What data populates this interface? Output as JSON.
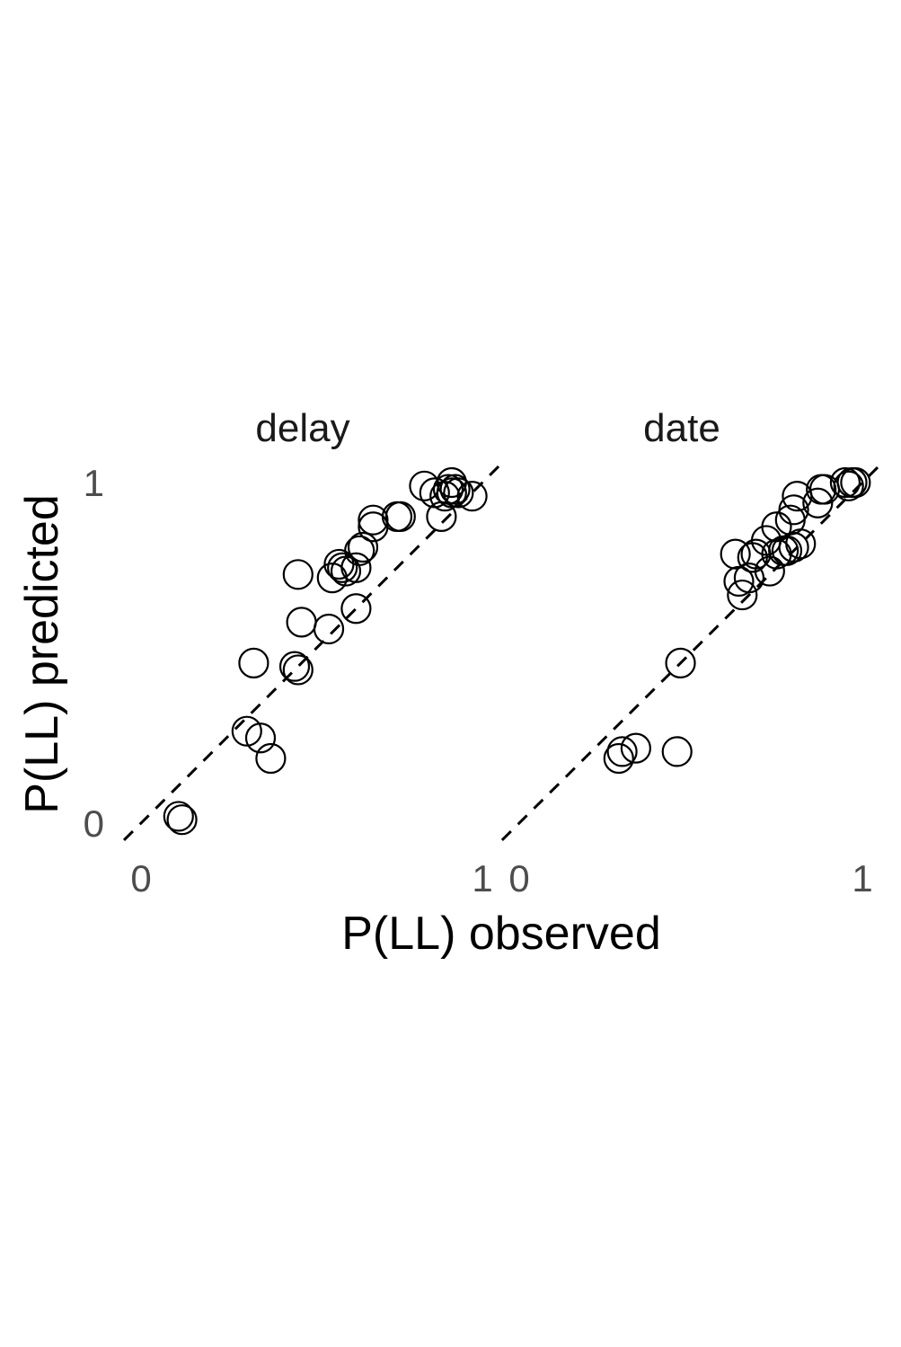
{
  "chart_data": {
    "type": "scatter",
    "xlabel": "P(LL) observed",
    "ylabel": "P(LL) predicted",
    "xlim": [
      0,
      1
    ],
    "ylim": [
      0,
      1
    ],
    "grid": false,
    "legend": "none",
    "reference_line": "y = x (dashed)",
    "marker": "open-circle",
    "facets": [
      {
        "title": "delay",
        "x_ticks": [
          "0",
          "1"
        ],
        "y_ticks": [
          "0",
          "1"
        ],
        "points": [
          {
            "x": 0.11,
            "y": 0.02
          },
          {
            "x": 0.12,
            "y": 0.01
          },
          {
            "x": 0.31,
            "y": 0.27
          },
          {
            "x": 0.35,
            "y": 0.25
          },
          {
            "x": 0.38,
            "y": 0.19
          },
          {
            "x": 0.33,
            "y": 0.47
          },
          {
            "x": 0.45,
            "y": 0.46
          },
          {
            "x": 0.46,
            "y": 0.45
          },
          {
            "x": 0.47,
            "y": 0.59
          },
          {
            "x": 0.55,
            "y": 0.57
          },
          {
            "x": 0.46,
            "y": 0.73
          },
          {
            "x": 0.56,
            "y": 0.72
          },
          {
            "x": 0.58,
            "y": 0.76
          },
          {
            "x": 0.59,
            "y": 0.75
          },
          {
            "x": 0.6,
            "y": 0.74
          },
          {
            "x": 0.63,
            "y": 0.63
          },
          {
            "x": 0.63,
            "y": 0.75
          },
          {
            "x": 0.64,
            "y": 0.8
          },
          {
            "x": 0.65,
            "y": 0.81
          },
          {
            "x": 0.68,
            "y": 0.87
          },
          {
            "x": 0.68,
            "y": 0.89
          },
          {
            "x": 0.75,
            "y": 0.9
          },
          {
            "x": 0.76,
            "y": 0.9
          },
          {
            "x": 0.83,
            "y": 0.99
          },
          {
            "x": 0.86,
            "y": 0.97
          },
          {
            "x": 0.88,
            "y": 0.9
          },
          {
            "x": 0.89,
            "y": 0.96
          },
          {
            "x": 0.9,
            "y": 0.98
          },
          {
            "x": 0.91,
            "y": 1.0
          },
          {
            "x": 0.91,
            "y": 0.97
          },
          {
            "x": 0.92,
            "y": 0.98
          },
          {
            "x": 0.93,
            "y": 0.97
          },
          {
            "x": 0.97,
            "y": 0.96
          }
        ]
      },
      {
        "title": "date",
        "x_ticks": [
          "0",
          "1"
        ],
        "y_ticks": [],
        "points": [
          {
            "x": 0.29,
            "y": 0.19
          },
          {
            "x": 0.3,
            "y": 0.21
          },
          {
            "x": 0.34,
            "y": 0.22
          },
          {
            "x": 0.46,
            "y": 0.21
          },
          {
            "x": 0.47,
            "y": 0.47
          },
          {
            "x": 0.63,
            "y": 0.79
          },
          {
            "x": 0.64,
            "y": 0.71
          },
          {
            "x": 0.65,
            "y": 0.67
          },
          {
            "x": 0.67,
            "y": 0.72
          },
          {
            "x": 0.68,
            "y": 0.78
          },
          {
            "x": 0.69,
            "y": 0.79
          },
          {
            "x": 0.72,
            "y": 0.83
          },
          {
            "x": 0.73,
            "y": 0.74
          },
          {
            "x": 0.75,
            "y": 0.79
          },
          {
            "x": 0.75,
            "y": 0.87
          },
          {
            "x": 0.77,
            "y": 0.8
          },
          {
            "x": 0.78,
            "y": 0.8
          },
          {
            "x": 0.79,
            "y": 0.89
          },
          {
            "x": 0.8,
            "y": 0.81
          },
          {
            "x": 0.8,
            "y": 0.92
          },
          {
            "x": 0.81,
            "y": 0.96
          },
          {
            "x": 0.82,
            "y": 0.82
          },
          {
            "x": 0.87,
            "y": 0.94
          },
          {
            "x": 0.88,
            "y": 0.98
          },
          {
            "x": 0.89,
            "y": 0.98
          },
          {
            "x": 0.95,
            "y": 1.0
          },
          {
            "x": 0.96,
            "y": 0.99
          },
          {
            "x": 0.97,
            "y": 1.0
          },
          {
            "x": 0.98,
            "y": 1.0
          }
        ]
      }
    ]
  }
}
